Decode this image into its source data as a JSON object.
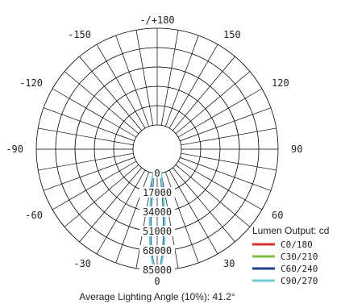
{
  "chart_data": {
    "type": "polar",
    "angle_labels": [
      {
        "angle": 180,
        "text": "-/+180"
      },
      {
        "angle": 150,
        "text": "150"
      },
      {
        "angle": -150,
        "text": "-150"
      },
      {
        "angle": 120,
        "text": "120"
      },
      {
        "angle": -120,
        "text": "-120"
      },
      {
        "angle": 90,
        "text": "90"
      },
      {
        "angle": -90,
        "text": "-90"
      },
      {
        "angle": 60,
        "text": "60"
      },
      {
        "angle": -60,
        "text": "-60"
      },
      {
        "angle": 30,
        "text": "30"
      },
      {
        "angle": -30,
        "text": "-30"
      },
      {
        "angle": 0,
        "text": "0"
      }
    ],
    "radial_ticks": [
      0,
      17000,
      34000,
      51000,
      68000,
      85000
    ],
    "radial_max": 85000,
    "angle_grid_step": 10,
    "legend_title": "Lumen Output: cd",
    "series": [
      {
        "name": "C0/180",
        "color": "#e0302a",
        "peak": 85000,
        "half_angle": 8.5
      },
      {
        "name": "C30/210",
        "color": "#7cc242",
        "peak": 85000,
        "half_angle": 8.2
      },
      {
        "name": "C60/240",
        "color": "#1f3f8f",
        "peak": 85000,
        "half_angle": 8.0
      },
      {
        "name": "C90/270",
        "color": "#6fcbd3",
        "peak": 85000,
        "half_angle": 8.8
      }
    ],
    "caption": "Average Lighting Angle (10%): 41.2°"
  }
}
